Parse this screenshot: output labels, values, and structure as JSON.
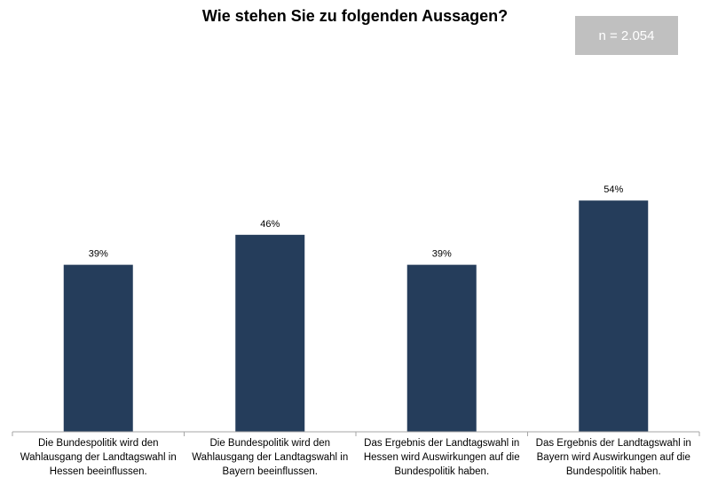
{
  "chart_data": {
    "type": "bar",
    "title": "Wie stehen Sie zu folgenden Aussagen?",
    "annotation": "n = 2.054",
    "categories": [
      "Die Bundespolitik wird den Wahlausgang der Landtagswahl in Hessen beeinflussen.",
      "Die Bundespolitik wird den Wahlausgang der Landtagswahl in Bayern beeinflussen.",
      "Das Ergebnis der Landtagswahl in Hessen wird Auswirkungen auf die Bundespolitik haben.",
      "Das Ergebnis der Landtagswahl in Bayern wird Auswirkungen auf die Bundespolitik haben."
    ],
    "values": [
      39,
      46,
      39,
      54
    ],
    "value_labels": [
      "39%",
      "46%",
      "39%",
      "54%"
    ],
    "ylim": [
      0,
      100
    ],
    "bar_color": "#253d5b",
    "grid": false
  }
}
